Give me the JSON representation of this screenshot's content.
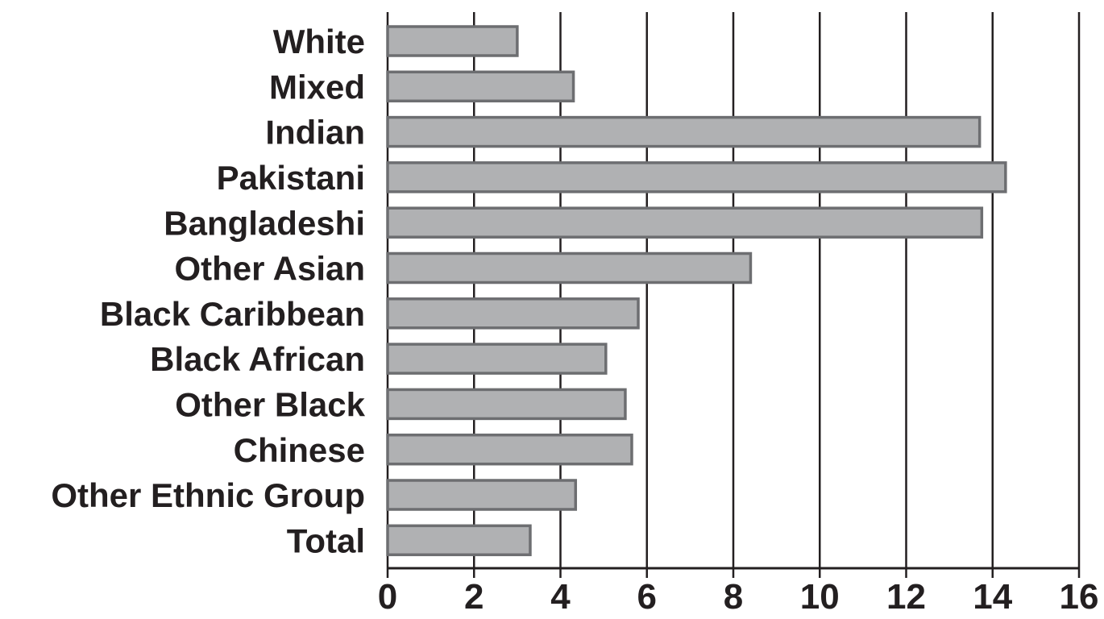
{
  "chart_data": {
    "type": "bar",
    "orientation": "horizontal",
    "categories": [
      "White",
      "Mixed",
      "Indian",
      "Pakistani",
      "Bangladeshi",
      "Other Asian",
      "Black Caribbean",
      "Black African",
      "Other Black",
      "Chinese",
      "Other Ethnic Group",
      "Total"
    ],
    "values": [
      3.0,
      4.3,
      13.7,
      14.3,
      13.75,
      8.4,
      5.8,
      5.05,
      5.5,
      5.65,
      4.35,
      3.3
    ],
    "title": "",
    "xlabel": "",
    "ylabel": "",
    "xlim": [
      0,
      16
    ],
    "xticks": [
      0,
      2,
      4,
      6,
      8,
      10,
      12,
      14,
      16
    ],
    "xtick_labels": [
      "0",
      "2",
      "4",
      "6",
      "8",
      "10",
      "12",
      "14",
      "16"
    ],
    "grid": "vertical",
    "legend": "none",
    "colors": {
      "bar_fill": "#b0b1b3",
      "bar_stroke": "#6d6e71",
      "grid": "#231f20",
      "text": "#231f20"
    }
  }
}
